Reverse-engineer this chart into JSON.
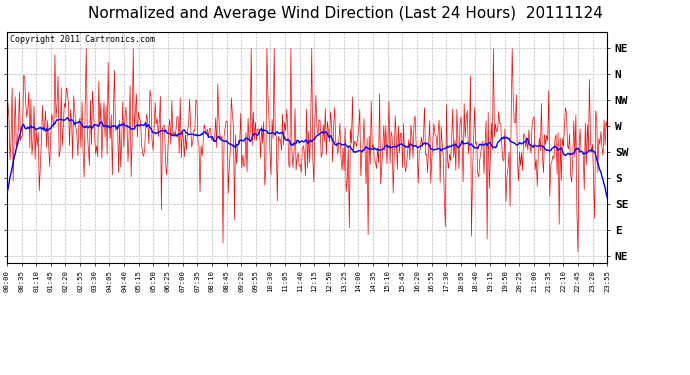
{
  "title": "Normalized and Average Wind Direction (Last 24 Hours)  20111124",
  "copyright_text": "Copyright 2011 Cartronics.com",
  "background_color": "#ffffff",
  "plot_bg_color": "#ffffff",
  "grid_color": "#bbbbbb",
  "red_line_color": "#ff0000",
  "blue_line_color": "#0000ff",
  "title_fontsize": 11,
  "ytick_labels": [
    "NE",
    "N",
    "NW",
    "W",
    "SW",
    "S",
    "SE",
    "E",
    "NE"
  ],
  "ytick_values": [
    1.0,
    0.875,
    0.75,
    0.625,
    0.5,
    0.375,
    0.25,
    0.125,
    0.0
  ],
  "xtick_labels": [
    "00:00",
    "00:35",
    "01:10",
    "01:45",
    "02:20",
    "02:55",
    "03:30",
    "04:05",
    "04:40",
    "05:15",
    "05:50",
    "06:25",
    "07:00",
    "07:35",
    "08:10",
    "08:45",
    "09:20",
    "09:55",
    "10:30",
    "11:05",
    "11:40",
    "12:15",
    "12:50",
    "13:25",
    "14:00",
    "14:35",
    "15:10",
    "15:45",
    "16:20",
    "16:55",
    "17:30",
    "18:05",
    "18:40",
    "19:15",
    "19:50",
    "20:25",
    "21:00",
    "21:35",
    "22:10",
    "22:45",
    "23:20",
    "23:55"
  ],
  "num_points": 576,
  "moving_avg_window": 30,
  "seed": 123
}
